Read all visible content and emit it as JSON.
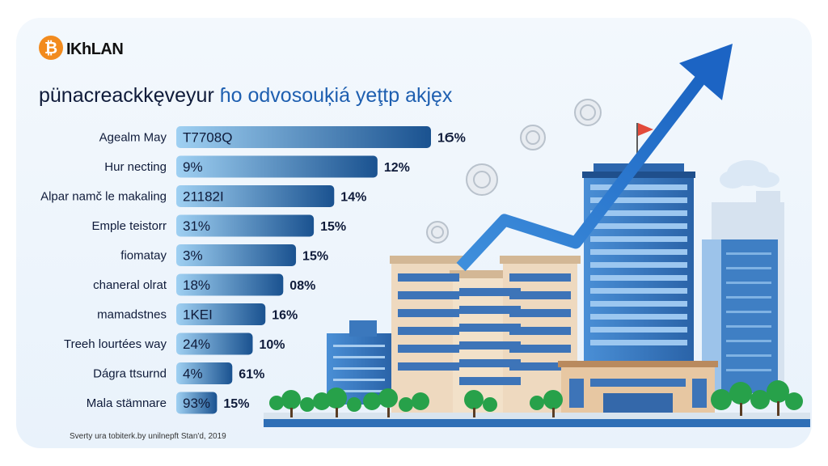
{
  "header": {
    "logo_glyph": "₿",
    "brand": "IKhLAN",
    "title_part1": "pünacreackkęveyur",
    "title_part2": "ɦo odvosouķiá yeţtp akjęx"
  },
  "source_note": "Sverty ura tobiterk.by unilnepft Stan'd, 2019",
  "colors": {
    "bar_start": "#9fd0f2",
    "bar_end": "#1a5290",
    "text_dark": "#0f1b3a",
    "accent": "#1e5fb0",
    "logo": "#f28b1e"
  },
  "chart_data": {
    "type": "bar",
    "orientation": "horizontal",
    "categories": [
      "Agealm May",
      "Hur necting",
      "Alpar namč le makaling",
      "Emple teistorr",
      "fiomatay",
      "chaneral olrat",
      "mamadstnes",
      "Treeh lourtées way",
      "Dágra ttsurnd",
      "Mala stämnare"
    ],
    "bar_values": [
      100,
      79,
      62,
      54,
      47,
      42,
      35,
      30,
      22,
      16
    ],
    "bar_labels": [
      "T7708Q",
      "9%",
      "21182I",
      "31%",
      "3%",
      "18%",
      "1KEI",
      "24%",
      "4%",
      "93%"
    ],
    "end_labels": [
      "1Ϭ%",
      "12%",
      "14%",
      "15%",
      "15%",
      "08%",
      "16%",
      "10%",
      "61%",
      "15%"
    ],
    "xlim": [
      0,
      100
    ],
    "grid": false,
    "legend": "none"
  }
}
